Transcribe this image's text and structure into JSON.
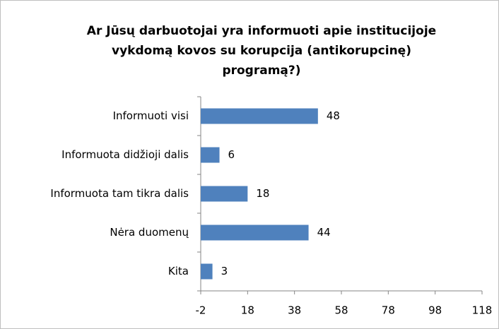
{
  "chart_data": {
    "type": "bar",
    "orientation": "horizontal",
    "title": [
      "Ar Jūsų darbuotojai yra informuoti apie institucijoje",
      "vykdomą kovos su korupcija (antikorupcinę)",
      "programą?)"
    ],
    "categories": [
      "Informuoti visi",
      "Informuota didžioji dalis",
      "Informuota tam tikra dalis",
      "Nėra duomenų",
      "Kita"
    ],
    "values": [
      48,
      6,
      18,
      44,
      3
    ],
    "color": "#4f81bd",
    "xlim": [
      -2,
      118
    ],
    "xticks": [
      -2,
      18,
      38,
      58,
      78,
      98,
      118
    ],
    "grid": false
  }
}
